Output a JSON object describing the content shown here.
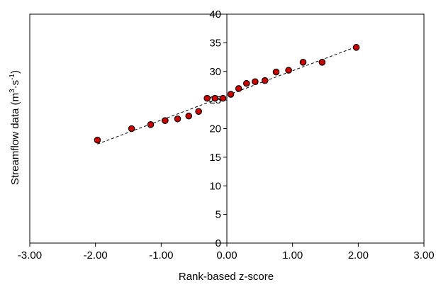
{
  "chart_data": {
    "type": "scatter",
    "title": "",
    "xlabel": "Rank-based z-score",
    "ylabel_main": "Streamflow data (m",
    "ylabel_sup1": "3",
    "ylabel_mid": "·s",
    "ylabel_sup2": "-1",
    "ylabel_end": ")",
    "xlim": [
      -3,
      3
    ],
    "ylim": [
      0,
      40
    ],
    "xticks": [
      -3,
      -2,
      -1,
      0,
      1,
      2,
      3
    ],
    "xtick_labels": [
      "-3.00",
      "-2.00",
      "-1.00",
      "0.00",
      "1.00",
      "2.00",
      "3.00"
    ],
    "yticks": [
      0,
      5,
      10,
      15,
      20,
      25,
      30,
      35,
      40
    ],
    "ytick_labels": [
      "0",
      "5",
      "10",
      "15",
      "20",
      "25",
      "30",
      "35",
      "40"
    ],
    "grid": false,
    "marker_color": "#d40000",
    "marker_edge": "#000000",
    "series": [
      {
        "x": [
          -1.97,
          -1.45,
          -1.16,
          -0.94,
          -0.75,
          -0.58,
          -0.43,
          -0.3,
          -0.18,
          -0.06,
          0.06,
          0.18,
          0.3,
          0.43,
          0.58,
          0.75,
          0.94,
          1.16,
          1.45,
          1.97
        ],
        "y": [
          18.0,
          20.0,
          20.7,
          21.4,
          21.7,
          22.2,
          23.0,
          25.3,
          25.3,
          25.3,
          26.0,
          27.0,
          27.9,
          28.2,
          28.4,
          29.9,
          30.2,
          31.6,
          31.6,
          34.2
        ]
      }
    ],
    "trendline": {
      "style": "dashed",
      "x": [
        -1.97,
        1.97
      ],
      "y": [
        17.3,
        34.3
      ]
    }
  }
}
